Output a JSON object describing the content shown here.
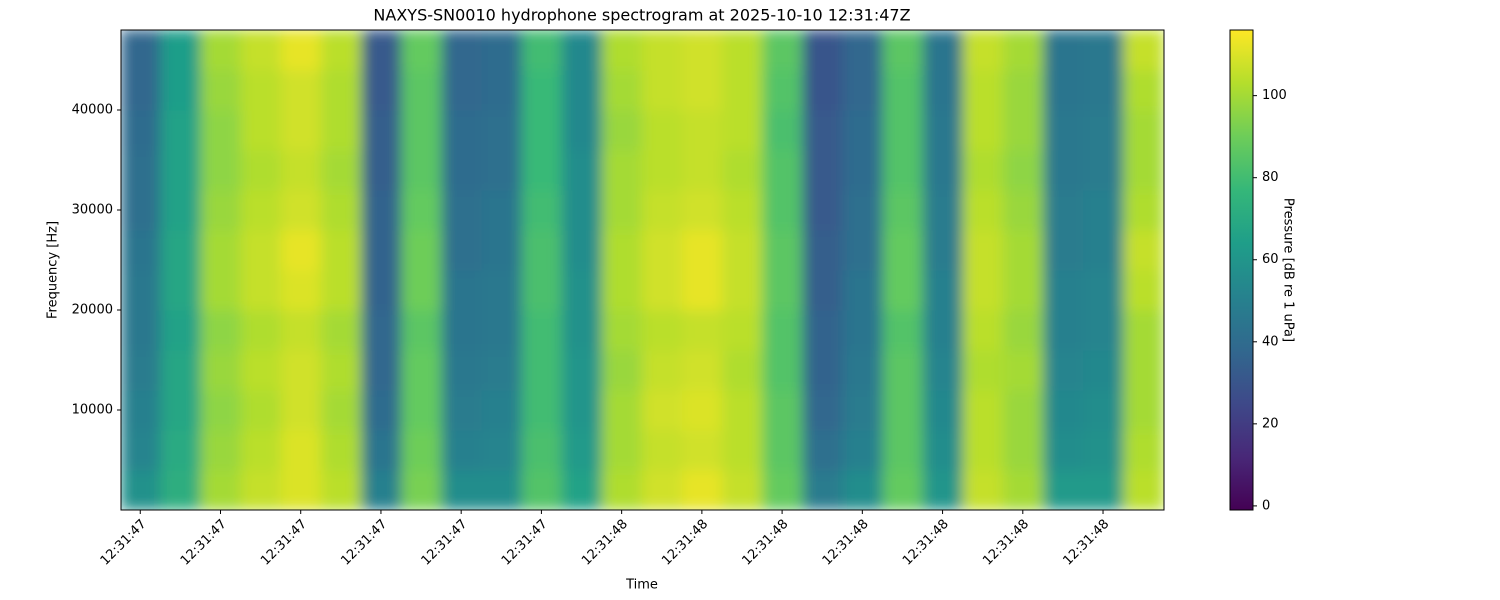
{
  "chart_data": {
    "type": "heatmap",
    "title": "NAXYS-SN0010 hydrophone spectrogram at 2025-10-10 12:31:47Z",
    "xlabel": "Time",
    "ylabel": "Frequency [Hz]",
    "colorbar_label": "Pressure [dB re 1 uPa]",
    "cmap": "viridis",
    "xlim": [
      -0.24,
      12.76
    ],
    "xticks": [
      {
        "value": 0,
        "label": "12:31:47"
      },
      {
        "value": 1,
        "label": "12:31:47"
      },
      {
        "value": 2,
        "label": "12:31:47"
      },
      {
        "value": 3,
        "label": "12:31:47"
      },
      {
        "value": 4,
        "label": "12:31:47"
      },
      {
        "value": 5,
        "label": "12:31:47"
      },
      {
        "value": 6,
        "label": "12:31:48"
      },
      {
        "value": 7,
        "label": "12:31:48"
      },
      {
        "value": 8,
        "label": "12:31:48"
      },
      {
        "value": 9,
        "label": "12:31:48"
      },
      {
        "value": 10,
        "label": "12:31:48"
      },
      {
        "value": 11,
        "label": "12:31:48"
      },
      {
        "value": 12,
        "label": "12:31:48"
      }
    ],
    "ylim": [
      0,
      48000
    ],
    "yticks": [
      10000,
      20000,
      30000,
      40000
    ],
    "xbins": [
      -0.24,
      0.26,
      0.76,
      1.26,
      1.76,
      2.26,
      2.76,
      3.26,
      3.76,
      4.26,
      4.76,
      5.26,
      5.76,
      6.26,
      6.76,
      7.26,
      7.76,
      8.26,
      8.76,
      9.26,
      9.76,
      10.26,
      10.76,
      11.26,
      11.76,
      12.26,
      12.76
    ],
    "ybins": [
      0,
      4000,
      8000,
      12000,
      16000,
      20000,
      24000,
      28000,
      32000,
      36000,
      40000,
      44000,
      48000
    ],
    "z": [
      [
        58,
        72,
        100,
        106,
        110,
        104,
        50,
        92,
        56,
        56,
        84,
        66,
        102,
        108,
        112,
        106,
        88,
        48,
        56,
        88,
        60,
        106,
        100,
        62,
        62,
        104
      ],
      [
        52,
        70,
        98,
        104,
        110,
        102,
        44,
        90,
        50,
        52,
        82,
        62,
        100,
        106,
        108,
        104,
        86,
        42,
        50,
        86,
        56,
        104,
        98,
        56,
        58,
        102
      ],
      [
        50,
        68,
        96,
        102,
        108,
        100,
        40,
        88,
        48,
        50,
        80,
        60,
        100,
        108,
        110,
        104,
        86,
        38,
        48,
        86,
        54,
        104,
        98,
        54,
        56,
        100
      ],
      [
        48,
        68,
        98,
        104,
        108,
        102,
        38,
        88,
        46,
        48,
        80,
        60,
        98,
        106,
        108,
        102,
        84,
        36,
        46,
        86,
        52,
        102,
        100,
        52,
        54,
        100
      ],
      [
        46,
        66,
        96,
        102,
        106,
        100,
        38,
        86,
        44,
        46,
        80,
        58,
        100,
        104,
        106,
        104,
        84,
        36,
        44,
        84,
        50,
        104,
        98,
        50,
        52,
        100
      ],
      [
        46,
        68,
        100,
        106,
        110,
        104,
        36,
        90,
        44,
        46,
        82,
        58,
        102,
        108,
        112,
        106,
        86,
        34,
        44,
        88,
        50,
        106,
        100,
        50,
        52,
        104
      ],
      [
        44,
        68,
        100,
        106,
        112,
        104,
        36,
        90,
        42,
        44,
        82,
        56,
        102,
        108,
        112,
        106,
        86,
        34,
        42,
        88,
        48,
        106,
        100,
        48,
        50,
        106
      ],
      [
        42,
        66,
        98,
        104,
        108,
        102,
        36,
        88,
        42,
        44,
        80,
        56,
        100,
        106,
        108,
        104,
        84,
        32,
        42,
        86,
        48,
        104,
        98,
        48,
        50,
        102
      ],
      [
        42,
        66,
        96,
        102,
        106,
        100,
        34,
        86,
        40,
        42,
        78,
        56,
        100,
        104,
        106,
        102,
        84,
        32,
        40,
        84,
        46,
        102,
        96,
        46,
        48,
        100
      ],
      [
        40,
        66,
        96,
        104,
        108,
        102,
        34,
        86,
        40,
        42,
        78,
        54,
        98,
        104,
        106,
        104,
        82,
        32,
        40,
        84,
        46,
        104,
        98,
        46,
        48,
        100
      ],
      [
        38,
        64,
        98,
        104,
        108,
        102,
        32,
        86,
        38,
        40,
        78,
        54,
        100,
        106,
        108,
        104,
        84,
        30,
        38,
        84,
        44,
        104,
        98,
        44,
        46,
        102
      ],
      [
        38,
        64,
        100,
        106,
        112,
        104,
        32,
        88,
        38,
        40,
        80,
        54,
        102,
        106,
        108,
        104,
        86,
        30,
        38,
        86,
        44,
        106,
        100,
        44,
        46,
        106
      ]
    ],
    "clim": [
      -1,
      116
    ],
    "cticks": [
      0,
      20,
      40,
      60,
      80,
      100
    ]
  }
}
